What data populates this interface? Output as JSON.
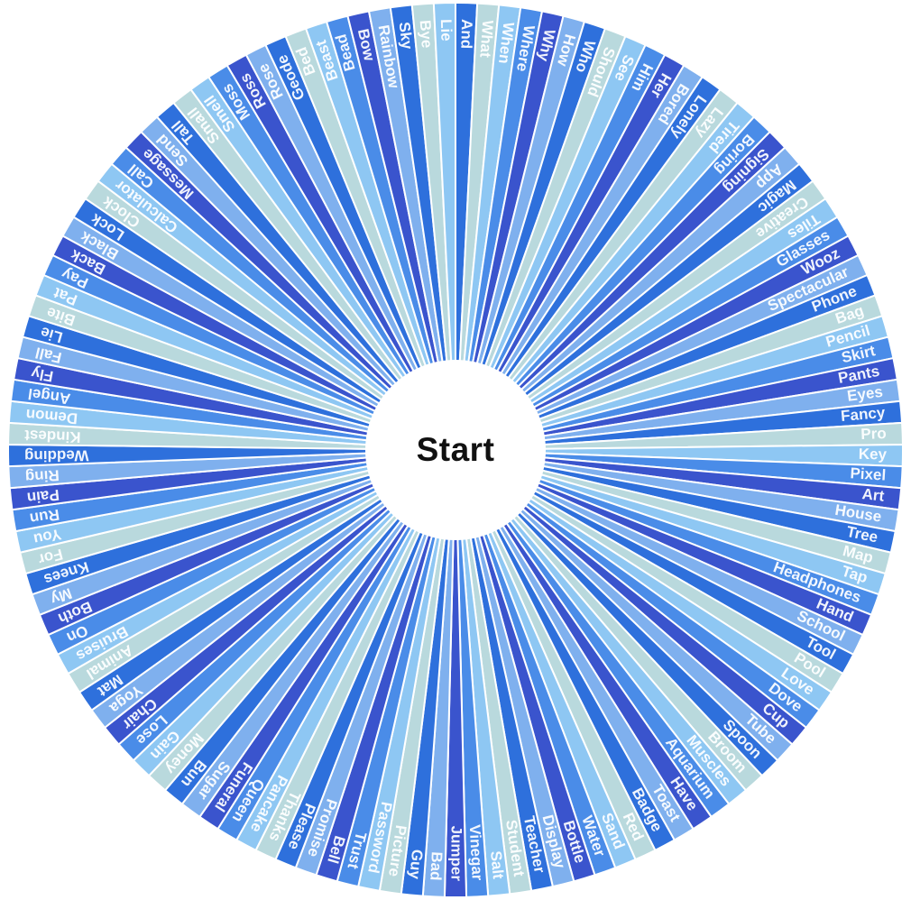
{
  "wheel": {
    "center_label": "Start",
    "text_color": "#ffffff",
    "center_text_color": "#111111",
    "background_color": "#ffffff",
    "palette": [
      "#3a54cd",
      "#4a8ce8",
      "#8ec7f3",
      "#b9d9dd",
      "#2e70dc",
      "#7fb0ee"
    ],
    "segments": [
      "And",
      "What",
      "When",
      "Where",
      "Why",
      "How",
      "Who",
      "Should",
      "See",
      "Him",
      "Her",
      "Bored",
      "Lonely",
      "Lazy",
      "Tired",
      "Boring",
      "Signing",
      "App",
      "Magic",
      "Creative",
      "Tiles",
      "Glasses",
      "Wooz",
      "Spectacular",
      "Phone",
      "Bag",
      "Pencil",
      "Skirt",
      "Pants",
      "Eyes",
      "Fancy",
      "Pro",
      "Key",
      "Pixel",
      "Art",
      "House",
      "Tree",
      "Map",
      "Tap",
      "Headphones",
      "Hand",
      "School",
      "Tool",
      "Pool",
      "Love",
      "Dove",
      "Cup",
      "Tube",
      "Spoon",
      "Broom",
      "Muscles",
      "Aquarium",
      "Have",
      "Toast",
      "Badge",
      "Red",
      "Sand",
      "Water",
      "Bottle",
      "Display",
      "Teacher",
      "Student",
      "Salt",
      "Vinegar",
      "Jumper",
      "Bad",
      "Guy",
      "Picture",
      "Password",
      "Trust",
      "Bell",
      "Promise",
      "Please",
      "Thanks",
      "Pancake",
      "Queen",
      "Funeral",
      "Sugar",
      "Bun",
      "Money",
      "Gain",
      "Lose",
      "Chair",
      "Yoga",
      "Mat",
      "Animal",
      "Bruises",
      "On",
      "Both",
      "My",
      "Knees",
      "For",
      "You",
      "Run",
      "Pain",
      "Ring",
      "Wedding",
      "Kindest",
      "Demon",
      "Angel",
      "Fly",
      "Fall",
      "Lie",
      "Bite",
      "Pat",
      "Pay",
      "Back",
      "Black",
      "Lock",
      "Clock",
      "Calculator",
      "Call",
      "Message",
      "Send",
      "Tall",
      "Small",
      "Smell",
      "Moss",
      "Ross",
      "Rose",
      "Geode",
      "Bed",
      "Beast",
      "Bead",
      "Bow",
      "Rainbow",
      "Sky",
      "Bye",
      "Lie"
    ]
  }
}
